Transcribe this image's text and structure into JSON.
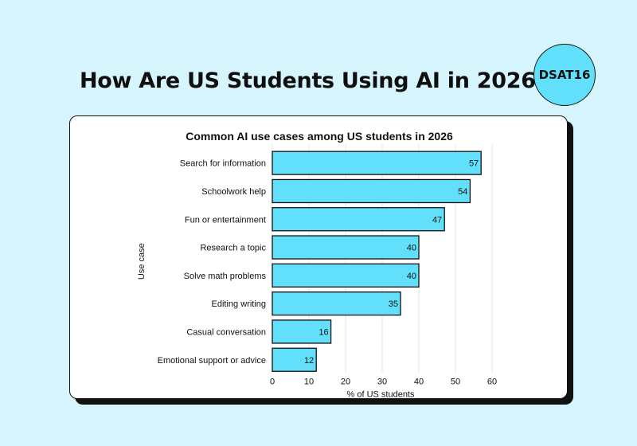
{
  "page": {
    "title": "How Are US Students Using AI in 2026?",
    "badge": "DSAT16"
  },
  "colors": {
    "background": "#d6f5fc",
    "bar_fill": "#62e0fb",
    "bar_stroke": "#111111",
    "grid": "#e6e6e6"
  },
  "chart_data": {
    "type": "bar",
    "orientation": "horizontal",
    "title": "Common AI use cases among US students in 2026",
    "xlabel": "% of US students",
    "ylabel": "Use case",
    "categories": [
      "Search for information",
      "Schoolwork help",
      "Fun or entertainment",
      "Research a topic",
      "Solve math problems",
      "Editing writing",
      "Casual conversation",
      "Emotional support or advice"
    ],
    "values": [
      57,
      54,
      47,
      40,
      40,
      35,
      16,
      12
    ],
    "xlim": [
      0,
      60
    ],
    "xticks": [
      0,
      10,
      20,
      30,
      40,
      50,
      60
    ],
    "grid": "vertical",
    "data_labels": true
  }
}
